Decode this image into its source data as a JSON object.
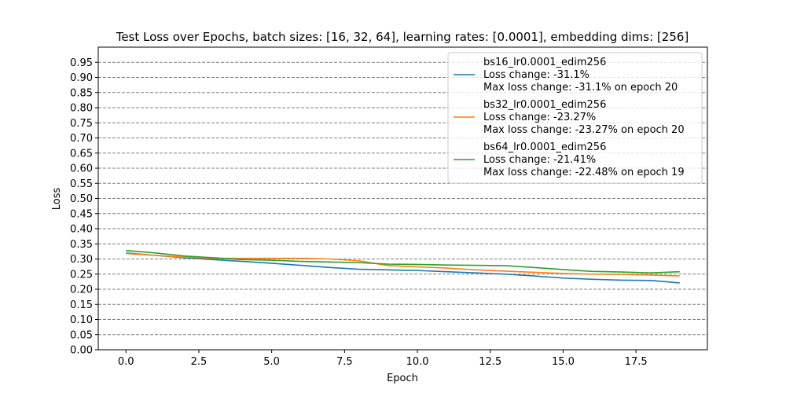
{
  "chart_data": {
    "type": "line",
    "title": "Test Loss over Epochs, batch sizes: [16, 32, 64], learning rates: [0.0001], embedding dims: [256]",
    "xlabel": "Epoch",
    "ylabel": "Loss",
    "xlim": [
      -0.95,
      19.95
    ],
    "ylim": [
      0.0,
      1.0
    ],
    "xticks": [
      0.0,
      2.5,
      5.0,
      7.5,
      10.0,
      12.5,
      15.0,
      17.5
    ],
    "xtick_labels": [
      "0.0",
      "2.5",
      "5.0",
      "7.5",
      "10.0",
      "12.5",
      "15.0",
      "17.5"
    ],
    "yticks": [
      0.0,
      0.05,
      0.1,
      0.15,
      0.2,
      0.25,
      0.3,
      0.35,
      0.4,
      0.45,
      0.5,
      0.55,
      0.6,
      0.65,
      0.7,
      0.75,
      0.8,
      0.85,
      0.9,
      0.95
    ],
    "ytick_labels": [
      "0.00",
      "0.05",
      "0.10",
      "0.15",
      "0.20",
      "0.25",
      "0.30",
      "0.35",
      "0.40",
      "0.45",
      "0.50",
      "0.55",
      "0.60",
      "0.65",
      "0.70",
      "0.75",
      "0.80",
      "0.85",
      "0.90",
      "0.95"
    ],
    "grid": "horizontal dashed",
    "legend_position": "top-right",
    "x": [
      0,
      1,
      2,
      3,
      4,
      5,
      6,
      7,
      8,
      9,
      10,
      11,
      12,
      13,
      14,
      15,
      16,
      17,
      18,
      19
    ],
    "series": [
      {
        "name": "bs16_lr0.0001_edim256",
        "legend_lines": [
          "bs16_lr0.0001_edim256",
          "Loss change: -31.1%",
          "Max loss change: -31.1% on epoch 20"
        ],
        "color": "#1f77b4",
        "values": [
          0.32,
          0.312,
          0.304,
          0.298,
          0.292,
          0.286,
          0.279,
          0.272,
          0.266,
          0.264,
          0.262,
          0.258,
          0.254,
          0.25,
          0.244,
          0.237,
          0.233,
          0.23,
          0.229,
          0.221
        ]
      },
      {
        "name": "bs32_lr0.0001_edim256",
        "legend_lines": [
          "bs32_lr0.0001_edim256",
          "Loss change: -23.27%",
          "Max loss change: -23.27% on epoch 20"
        ],
        "color": "#ff7f0e",
        "values": [
          0.318,
          0.312,
          0.306,
          0.302,
          0.302,
          0.302,
          0.302,
          0.3,
          0.294,
          0.278,
          0.274,
          0.27,
          0.264,
          0.26,
          0.256,
          0.252,
          0.25,
          0.249,
          0.247,
          0.244
        ]
      },
      {
        "name": "bs64_lr0.0001_edim256",
        "legend_lines": [
          "bs64_lr0.0001_edim256",
          "Loss change: -21.41%",
          "Max loss change: -22.48% on epoch 19"
        ],
        "color": "#2ca02c",
        "values": [
          0.328,
          0.32,
          0.31,
          0.304,
          0.298,
          0.296,
          0.292,
          0.29,
          0.288,
          0.283,
          0.282,
          0.28,
          0.279,
          0.278,
          0.272,
          0.265,
          0.259,
          0.257,
          0.254,
          0.258
        ]
      }
    ]
  }
}
